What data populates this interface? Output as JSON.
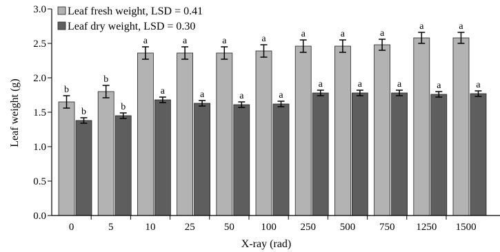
{
  "chart_data": {
    "type": "bar",
    "title": "",
    "xlabel": "X-ray (rad)",
    "ylabel": "Leaf weight (g)",
    "ylim": [
      0,
      3.0
    ],
    "yticks": [
      "0.0",
      "0.5",
      "1.0",
      "1.5",
      "2.0",
      "2.5",
      "3.0"
    ],
    "categories": [
      "0",
      "5",
      "10",
      "25",
      "50",
      "100",
      "250",
      "500",
      "750",
      "1250",
      "1500"
    ],
    "series": [
      {
        "name": "Leaf fresh weight, LSD = 0.41",
        "color": "#b3b3b3",
        "values": [
          1.65,
          1.8,
          2.36,
          2.36,
          2.36,
          2.39,
          2.46,
          2.46,
          2.48,
          2.58,
          2.58
        ],
        "errors": [
          0.09,
          0.09,
          0.09,
          0.09,
          0.09,
          0.09,
          0.09,
          0.09,
          0.08,
          0.08,
          0.08
        ],
        "labels": [
          "b",
          "b",
          "a",
          "a",
          "a",
          "a",
          "a",
          "a",
          "a",
          "a",
          "a"
        ]
      },
      {
        "name": "Leaf dry weight, LSD = 0.30",
        "color": "#5e5e5e",
        "values": [
          1.38,
          1.45,
          1.68,
          1.63,
          1.61,
          1.62,
          1.78,
          1.78,
          1.78,
          1.76,
          1.77
        ],
        "errors": [
          0.04,
          0.04,
          0.04,
          0.04,
          0.04,
          0.04,
          0.04,
          0.04,
          0.04,
          0.04,
          0.04
        ],
        "labels": [
          "b",
          "b",
          "a",
          "a",
          "a",
          "a",
          "a",
          "a",
          "a",
          "a",
          "a"
        ]
      }
    ],
    "legend": "top-left",
    "grid": false
  }
}
